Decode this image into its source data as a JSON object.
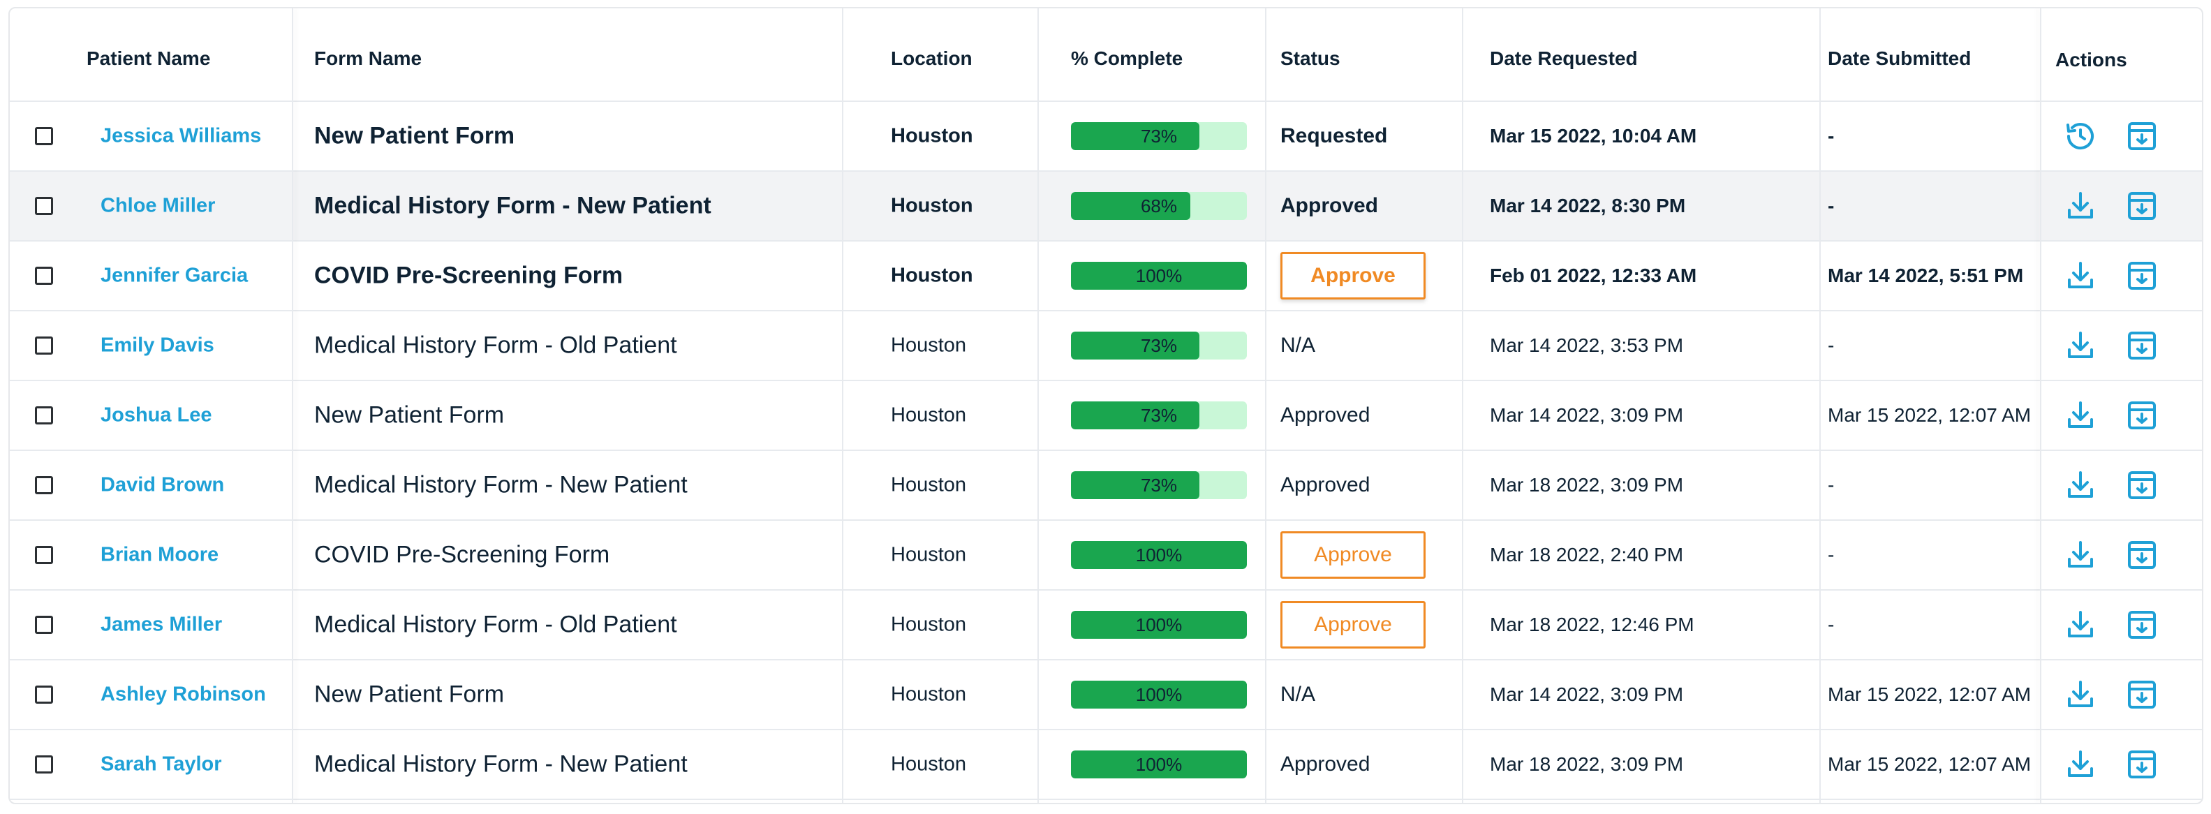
{
  "headers": {
    "patient_name": "Patient Name",
    "form_name": "Form Name",
    "location": "Location",
    "percent_complete": "% Complete",
    "status": "Status",
    "date_requested": "Date Requested",
    "date_submitted": "Date Submitted",
    "actions": "Actions"
  },
  "colors": {
    "link": "#1ea0d6",
    "progress_fill": "#1aa64f",
    "progress_track": "#c9f7d7",
    "approve": "#f08a24",
    "row_highlight": "#f2f3f5"
  },
  "rows": [
    {
      "patient": "Jessica Williams",
      "form": "New Patient Form",
      "location": "Houston",
      "percent": 73,
      "percent_label": "73%",
      "status": "Requested",
      "status_is_button": false,
      "date_requested": "Mar 15 2022, 10:04 AM",
      "date_submitted": "-",
      "action1_icon": "history-icon",
      "action2_icon": "archive-download-icon",
      "bold": true
    },
    {
      "patient": "Chloe Miller",
      "form": "Medical History Form - New Patient",
      "location": "Houston",
      "percent": 68,
      "percent_label": "68%",
      "status": "Approved",
      "status_is_button": false,
      "date_requested": "Mar 14 2022, 8:30 PM",
      "date_submitted": "-",
      "action1_icon": "download-icon",
      "action2_icon": "archive-download-icon",
      "bold": true
    },
    {
      "patient": "Jennifer Garcia",
      "form": "COVID Pre-Screening Form",
      "location": "Houston",
      "percent": 100,
      "percent_label": "100%",
      "status": "Approve",
      "status_is_button": true,
      "date_requested": "Feb 01 2022, 12:33 AM",
      "date_submitted": "Mar 14 2022, 5:51 PM",
      "action1_icon": "download-icon",
      "action2_icon": "archive-download-icon",
      "bold": true
    },
    {
      "patient": "Emily Davis",
      "form": "Medical History Form - Old Patient",
      "location": "Houston",
      "percent": 73,
      "percent_label": "73%",
      "status": "N/A",
      "status_is_button": false,
      "date_requested": "Mar 14 2022, 3:53 PM",
      "date_submitted": "-",
      "action1_icon": "download-icon",
      "action2_icon": "archive-download-icon",
      "bold": false
    },
    {
      "patient": "Joshua Lee",
      "form": "New Patient Form",
      "location": "Houston",
      "percent": 73,
      "percent_label": "73%",
      "status": "Approved",
      "status_is_button": false,
      "date_requested": "Mar 14 2022, 3:09 PM",
      "date_submitted": "Mar 15 2022, 12:07 AM",
      "action1_icon": "download-icon",
      "action2_icon": "archive-download-icon",
      "bold": false
    },
    {
      "patient": "David Brown",
      "form": "Medical History Form - New Patient",
      "location": "Houston",
      "percent": 73,
      "percent_label": "73%",
      "status": "Approved",
      "status_is_button": false,
      "date_requested": "Mar 18 2022, 3:09 PM",
      "date_submitted": "-",
      "action1_icon": "download-icon",
      "action2_icon": "archive-download-icon",
      "bold": false
    },
    {
      "patient": "Brian Moore",
      "form": "COVID Pre-Screening Form",
      "location": "Houston",
      "percent": 100,
      "percent_label": "100%",
      "status": "Approve",
      "status_is_button": true,
      "date_requested": "Mar 18 2022, 2:40 PM",
      "date_submitted": "-",
      "action1_icon": "download-icon",
      "action2_icon": "archive-download-icon",
      "bold": false
    },
    {
      "patient": "James Miller",
      "form": "Medical History Form - Old Patient",
      "location": "Houston",
      "percent": 100,
      "percent_label": "100%",
      "status": "Approve",
      "status_is_button": true,
      "date_requested": "Mar 18 2022, 12:46 PM",
      "date_submitted": "-",
      "action1_icon": "download-icon",
      "action2_icon": "archive-download-icon",
      "bold": false
    },
    {
      "patient": "Ashley Robinson",
      "form": "New Patient Form",
      "location": "Houston",
      "percent": 100,
      "percent_label": "100%",
      "status": "N/A",
      "status_is_button": false,
      "date_requested": "Mar 14 2022, 3:09 PM",
      "date_submitted": "Mar 15 2022, 12:07 AM",
      "action1_icon": "download-icon",
      "action2_icon": "archive-download-icon",
      "bold": false
    },
    {
      "patient": "Sarah Taylor",
      "form": "Medical History Form - New Patient",
      "location": "Houston",
      "percent": 100,
      "percent_label": "100%",
      "status": "Approved",
      "status_is_button": false,
      "date_requested": "Mar 18 2022, 3:09 PM",
      "date_submitted": "Mar 15 2022, 12:07 AM",
      "action1_icon": "download-icon",
      "action2_icon": "archive-download-icon",
      "bold": false
    }
  ]
}
